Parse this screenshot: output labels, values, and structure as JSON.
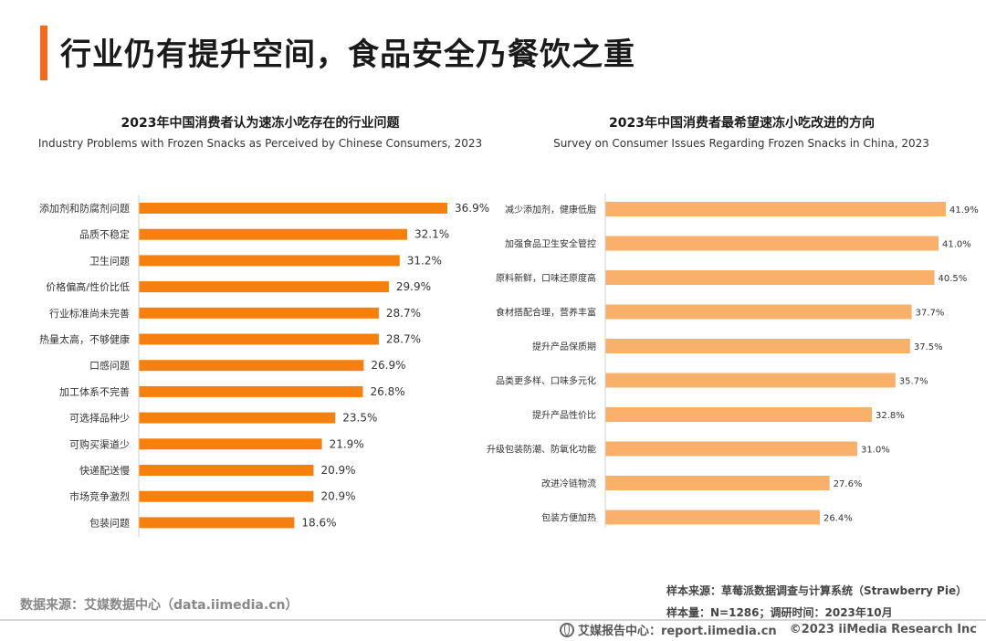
{
  "page": {
    "title": "行业仍有提升空间，食品安全乃餐饮之重",
    "accent_color": "#F26B1D"
  },
  "chart_data": [
    {
      "type": "bar",
      "orientation": "horizontal",
      "title": "2023年中国消费者认为速冻小吃存在的行业问题",
      "subtitle": "Industry Problems with Frozen Snacks as Perceived by Chinese Consumers, 2023",
      "categories": [
        "添加剂和防腐剂问题",
        "品质不稳定",
        "卫生问题",
        "价格偏高/性价比低",
        "行业标准尚未完善",
        "热量太高，不够健康",
        "口感问题",
        "加工体系不完善",
        "可选择品种少",
        "可购买渠道少",
        "快递配送慢",
        "市场竞争激烈",
        "包装问题"
      ],
      "values": [
        36.9,
        32.1,
        31.2,
        29.9,
        28.7,
        28.7,
        26.9,
        26.8,
        23.5,
        21.9,
        20.9,
        20.9,
        18.6
      ],
      "labels": [
        "36.9%",
        "32.1%",
        "31.2%",
        "29.9%",
        "28.7%",
        "28.7%",
        "26.9%",
        "26.8%",
        "23.5%",
        "21.9%",
        "20.9%",
        "20.9%",
        "18.6%"
      ],
      "unit": "%",
      "xlim": [
        0,
        36.9
      ],
      "bar_color": "#F5800D",
      "grid": false
    },
    {
      "type": "bar",
      "orientation": "horizontal",
      "title": "2023年中国消费者最希望速冻小吃改进的方向",
      "subtitle": "Survey on Consumer Issues Regarding Frozen Snacks in China, 2023",
      "categories": [
        "减少添加剂，健康低脂",
        "加强食品卫生安全管控",
        "原料新鲜，口味还原度高",
        "食材搭配合理，营养丰富",
        "提升产品保质期",
        "品类更多样、口味多元化",
        "提升产品性价比",
        "升级包装防潮、防氧化功能",
        "改进冷链物流",
        "包装方便加热"
      ],
      "values": [
        41.9,
        41.0,
        40.5,
        37.7,
        37.5,
        35.7,
        32.8,
        31.0,
        27.6,
        26.4
      ],
      "labels": [
        "41.9%",
        "41.0%",
        "40.5%",
        "37.7%",
        "37.5%",
        "35.7%",
        "32.8%",
        "31.0%",
        "27.6%",
        "26.4%"
      ],
      "unit": "%",
      "xlim": [
        0,
        41.9
      ],
      "bar_color": "#F9B06B",
      "grid": false
    }
  ],
  "footer": {
    "data_source": "数据来源：艾媒数据中心（data.iimedia.cn）",
    "sample_source": "样本来源：草莓派数据调查与计算系统（Strawberry Pie）",
    "sample_size": "样本量：N=1286；调研时间：2023年10月",
    "brand": "艾媒报告中心：report.iimedia.cn",
    "copyright": "©2023  iiMedia Research  Inc",
    "globe_icon": "globe-icon"
  }
}
